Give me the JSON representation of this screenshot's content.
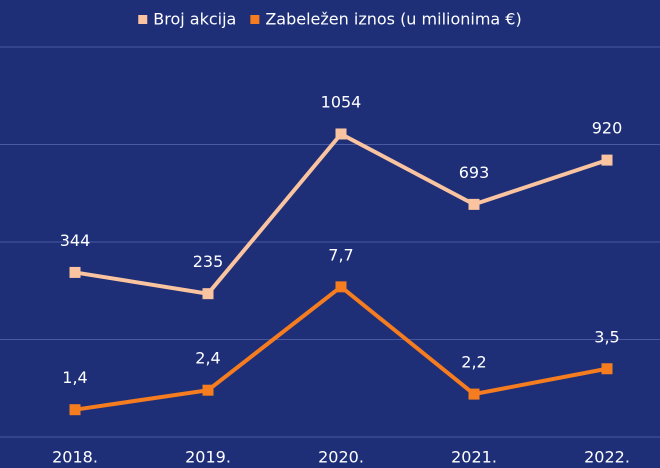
{
  "chart_data": {
    "type": "line",
    "categories": [
      "2018.",
      "2019.",
      "2020.",
      "2021.",
      "2022."
    ],
    "series": [
      {
        "name": "Broj akcija",
        "color": "#fbc4a0",
        "values": [
          344,
          235,
          1054,
          693,
          920
        ]
      },
      {
        "name": "Zabeležen iznos (u milionima €)",
        "color": "#f57c1f",
        "axis": "y2",
        "values": [
          1.4,
          2.4,
          7.7,
          2.2,
          3.5
        ],
        "value_labels": [
          "1,4",
          "2,4",
          "7,7",
          "2,2",
          "3,5"
        ]
      }
    ],
    "ylim": [
      -500,
      1500
    ],
    "yticks": [
      -500,
      0,
      500,
      1000,
      1500
    ],
    "y2lim": [
      0,
      20
    ],
    "grid": true,
    "legend": "top"
  }
}
